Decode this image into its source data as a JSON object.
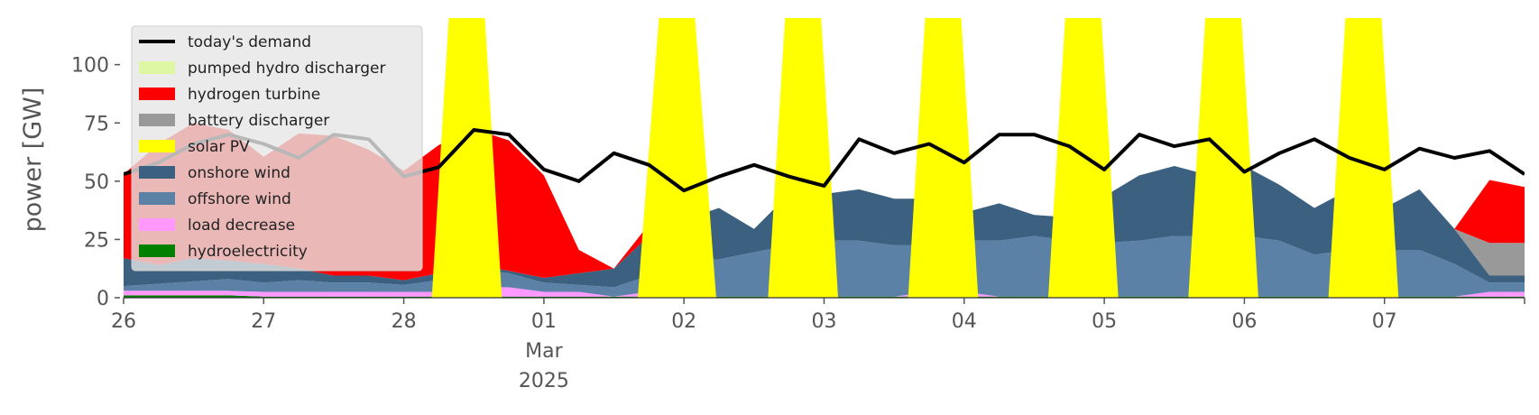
{
  "chart_data": {
    "type": "area",
    "stacked": true,
    "ylabel": "power [GW]",
    "ylim": [
      0,
      120
    ],
    "yticks": [
      0,
      25,
      50,
      75,
      100
    ],
    "xlim": [
      0,
      10
    ],
    "grid": false,
    "legend_position": "top-left",
    "x_tick_labels": [
      {
        "x": 0,
        "lines": [
          "26"
        ]
      },
      {
        "x": 1,
        "lines": [
          "27"
        ]
      },
      {
        "x": 2,
        "lines": [
          "28"
        ]
      },
      {
        "x": 3,
        "lines": [
          "01",
          "Mar",
          "2025"
        ]
      },
      {
        "x": 4,
        "lines": [
          "02"
        ]
      },
      {
        "x": 5,
        "lines": [
          "03"
        ]
      },
      {
        "x": 6,
        "lines": [
          "04"
        ]
      },
      {
        "x": 7,
        "lines": [
          "05"
        ]
      },
      {
        "x": 8,
        "lines": [
          "06"
        ]
      },
      {
        "x": 9,
        "lines": [
          "07"
        ]
      }
    ],
    "x": [
      0,
      0.25,
      0.5,
      0.75,
      1,
      1.25,
      1.5,
      1.75,
      2,
      2.25,
      2.5,
      2.75,
      3,
      3.25,
      3.5,
      3.75,
      4,
      4.25,
      4.5,
      4.75,
      5,
      5.25,
      5.5,
      5.75,
      6,
      6.25,
      6.5,
      6.75,
      7,
      7.25,
      7.5,
      7.75,
      8,
      8.25,
      8.5,
      8.75,
      9,
      9.25,
      9.5,
      9.75,
      10
    ],
    "series": [
      {
        "name": "hydroelectricity",
        "color": "#008000",
        "values": [
          1,
          1,
          1,
          1,
          0.5,
          0.5,
          0.5,
          0.5,
          0.5,
          0.5,
          0.5,
          0.5,
          0.5,
          0.5,
          0.5,
          0.5,
          0.5,
          0.5,
          0.5,
          0.5,
          0.5,
          0.5,
          0.5,
          0.5,
          0.5,
          0.5,
          0.5,
          0.5,
          0.5,
          0.5,
          0.5,
          0.5,
          0.5,
          0.5,
          0.5,
          0.5,
          0.5,
          0.5,
          0.5,
          0.5,
          0.5
        ]
      },
      {
        "name": "load decrease",
        "color": "#ff99ff",
        "values": [
          2,
          2,
          2,
          2,
          2,
          2,
          2,
          2,
          2,
          2,
          4,
          4,
          2,
          2,
          0,
          2,
          2,
          0,
          0,
          0,
          0,
          0,
          0,
          2,
          2,
          0,
          0,
          0,
          0,
          0,
          0,
          0,
          0,
          0,
          0,
          0,
          0,
          0,
          0,
          2,
          2
        ]
      },
      {
        "name": "offshore wind",
        "color": "#5b81a6",
        "values": [
          2,
          3,
          4,
          5,
          4,
          5,
          4,
          4,
          3,
          5,
          8,
          6,
          4,
          3,
          4,
          7,
          13,
          16,
          19,
          22,
          24,
          24,
          22,
          20,
          22,
          24,
          26,
          24,
          23,
          24,
          26,
          26,
          26,
          24,
          18,
          20,
          20,
          20,
          14,
          4,
          4
        ]
      },
      {
        "name": "onshore wind",
        "color": "#3b6080",
        "values": [
          12,
          8,
          10,
          8,
          8,
          5,
          3,
          3,
          2,
          3,
          2,
          1,
          2,
          5,
          8,
          17,
          18,
          22,
          10,
          22,
          20,
          22,
          20,
          20,
          12,
          16,
          9,
          10,
          20,
          28,
          30,
          26,
          30,
          24,
          20,
          26,
          18,
          26,
          15,
          3,
          3
        ]
      },
      {
        "name": "battery discharger",
        "color": "#999999",
        "values": [
          0,
          0,
          0,
          0,
          0,
          0,
          0,
          0,
          0,
          0,
          0,
          0,
          0,
          0,
          0,
          0,
          0,
          0,
          0,
          0,
          0,
          0,
          0,
          0,
          0,
          0,
          0,
          0,
          0,
          0,
          0,
          0,
          0,
          0,
          0,
          0,
          0,
          0,
          0,
          14,
          14
        ]
      },
      {
        "name": "solar PV",
        "color": "#ffff00",
        "values": [
          0,
          0,
          0,
          0,
          0,
          0,
          0,
          0,
          0,
          0,
          0,
          0,
          0,
          0,
          0,
          0,
          0,
          0,
          0,
          0,
          0,
          0,
          0,
          0,
          0,
          0,
          0,
          0,
          0,
          0,
          0,
          0,
          0,
          0,
          0,
          0,
          0,
          0,
          0,
          0,
          0
        ]
      },
      {
        "name": "hydrogen turbine",
        "color": "#ff0000",
        "values": [
          36,
          52,
          58,
          56,
          46,
          58,
          60,
          54,
          47,
          55,
          58,
          56,
          44,
          10,
          0,
          5,
          0,
          0,
          0,
          0,
          0,
          0,
          0,
          0,
          0,
          0,
          0,
          0,
          0,
          0,
          0,
          0,
          0,
          0,
          0,
          0,
          0,
          0,
          0,
          27,
          24
        ]
      },
      {
        "name": "pumped hydro discharger",
        "color": "#ddf7a2",
        "values": [
          0,
          0,
          0,
          0,
          0,
          0,
          0,
          0,
          0,
          0,
          0,
          0,
          0,
          0,
          0,
          0,
          0,
          0,
          0,
          0,
          0,
          0,
          0,
          0,
          0,
          0,
          0,
          0,
          0,
          0,
          0,
          0,
          0,
          0,
          0,
          0,
          0,
          0,
          0,
          0,
          0
        ]
      }
    ],
    "demand": {
      "name": "today's demand",
      "color": "#000000",
      "values": [
        53,
        58,
        66,
        70,
        66,
        60,
        70,
        68,
        52,
        56,
        72,
        70,
        55,
        50,
        62,
        57,
        46,
        52,
        57,
        52,
        48,
        68,
        62,
        66,
        58,
        70,
        70,
        65,
        55,
        70,
        65,
        68,
        54,
        62,
        68,
        60,
        55,
        64,
        60,
        63,
        53
      ]
    },
    "peaks": [
      {
        "x": 2.45,
        "y": 120,
        "half_width": 0.25
      },
      {
        "x": 3.95,
        "y": 120,
        "half_width": 0.28
      },
      {
        "x": 4.85,
        "y": 120,
        "half_width": 0.25
      },
      {
        "x": 5.85,
        "y": 120,
        "half_width": 0.25
      },
      {
        "x": 6.85,
        "y": 120,
        "half_width": 0.25
      },
      {
        "x": 7.85,
        "y": 120,
        "half_width": 0.25
      },
      {
        "x": 8.85,
        "y": 120,
        "half_width": 0.25
      }
    ],
    "legend": [
      {
        "label": "today's demand",
        "color": "#000000",
        "kind": "line"
      },
      {
        "label": "pumped hydro discharger",
        "color": "#ddf7a2",
        "kind": "patch"
      },
      {
        "label": "hydrogen turbine",
        "color": "#ff0000",
        "kind": "patch"
      },
      {
        "label": "battery discharger",
        "color": "#999999",
        "kind": "patch"
      },
      {
        "label": "solar PV",
        "color": "#ffff00",
        "kind": "patch"
      },
      {
        "label": "onshore wind",
        "color": "#3b6080",
        "kind": "patch"
      },
      {
        "label": "offshore wind",
        "color": "#5b81a6",
        "kind": "patch"
      },
      {
        "label": "load decrease",
        "color": "#ff99ff",
        "kind": "patch"
      },
      {
        "label": "hydroelectricity",
        "color": "#008000",
        "kind": "patch"
      }
    ]
  }
}
